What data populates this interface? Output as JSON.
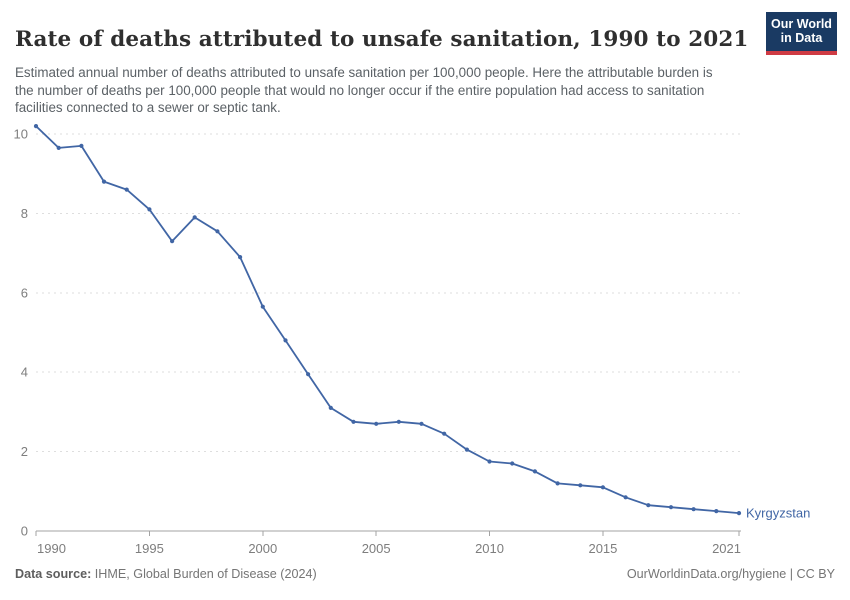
{
  "header": {
    "title": "Rate of deaths attributed to unsafe sanitation, 1990 to 2021",
    "subtitle": "Estimated annual number of deaths attributed to unsafe sanitation per 100,000 people. Here the attributable burden is the number of deaths per 100,000 people that would no longer occur if the entire population had access to sanitation facilities connected to a sewer or septic tank.",
    "logo": {
      "line1": "Our World",
      "line2": "in Data",
      "background_color": "#1a3a63",
      "accent_color": "#cf3b44"
    }
  },
  "chart_data": {
    "type": "line",
    "title": "Rate of deaths attributed to unsafe sanitation, 1990 to 2021",
    "xlabel": "",
    "ylabel": "",
    "xlim": [
      1990,
      2021
    ],
    "ylim": [
      0,
      10
    ],
    "x_ticks": [
      1990,
      1995,
      2000,
      2005,
      2010,
      2015,
      2021
    ],
    "y_ticks": [
      0,
      2,
      4,
      6,
      8,
      10
    ],
    "grid": "horizontal-dashed",
    "legend_position": "end-of-line-label",
    "x": [
      1990,
      1991,
      1992,
      1993,
      1994,
      1995,
      1996,
      1997,
      1998,
      1999,
      2000,
      2001,
      2002,
      2003,
      2004,
      2005,
      2006,
      2007,
      2008,
      2009,
      2010,
      2011,
      2012,
      2013,
      2014,
      2015,
      2016,
      2017,
      2018,
      2019,
      2020,
      2021
    ],
    "series": [
      {
        "name": "Kyrgyzstan",
        "color": "#4166a5",
        "values": [
          10.2,
          9.65,
          9.7,
          8.8,
          8.6,
          8.1,
          7.3,
          7.9,
          7.55,
          6.9,
          5.65,
          4.8,
          3.95,
          3.1,
          2.75,
          2.7,
          2.75,
          2.7,
          2.45,
          2.05,
          1.75,
          1.7,
          1.5,
          1.2,
          1.15,
          1.1,
          0.85,
          0.65,
          0.6,
          0.55,
          0.5,
          0.45
        ]
      }
    ]
  },
  "footer": {
    "source_label": "Data source:",
    "source_text": " IHME, Global Burden of Disease (2024)",
    "credit": "OurWorldinData.org/hygiene | CC BY"
  }
}
